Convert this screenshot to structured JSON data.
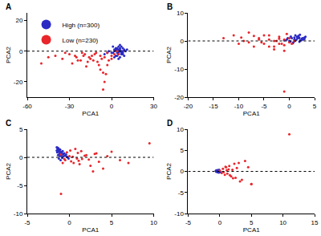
{
  "chart_data": [
    {
      "type": "scatter",
      "title": "A",
      "x_label": "PCA1",
      "y_label": "PCA2",
      "xlim": [
        -60,
        30
      ],
      "ylim": [
        -30,
        25
      ],
      "xticks": [
        -60,
        -30,
        0,
        30
      ],
      "yticks": [
        -20,
        0,
        20
      ],
      "hline": 0,
      "legend": "top left",
      "series": [
        {
          "name": "High (n=300)",
          "color": "#2b2bc4",
          "x": [
            2,
            4,
            5,
            6,
            7,
            8,
            3,
            5,
            9,
            1,
            6,
            4,
            7,
            8,
            2,
            5,
            3,
            10,
            6,
            4,
            0,
            -2,
            7,
            5,
            8,
            3,
            -5,
            6,
            9,
            4,
            11,
            1,
            5,
            7,
            -3,
            2,
            8,
            6,
            4,
            5
          ],
          "y": [
            0,
            1,
            -1,
            2,
            0,
            -2,
            -3,
            3,
            1,
            -1,
            -4,
            0,
            -1,
            2,
            1,
            -2,
            2,
            0,
            1,
            -3,
            -1,
            0,
            3,
            -5,
            -1,
            1,
            -2,
            0,
            -3,
            2,
            1,
            3,
            0,
            -2,
            -1,
            -4,
            0,
            4,
            -1,
            1
          ]
        },
        {
          "name": "Low (n=230)",
          "color": "#e8262b",
          "x": [
            -40,
            -35,
            -30,
            -28,
            -25,
            -22,
            -20,
            -18,
            -15,
            -12,
            -10,
            -8,
            -6,
            -5,
            -4,
            -3,
            -2,
            0,
            2,
            4,
            -50,
            -45,
            -33,
            -26,
            -17,
            -14,
            -9,
            -7,
            -11,
            -19,
            -24,
            -5,
            -3,
            -16,
            -21,
            0,
            5,
            -8,
            -13,
            -6
          ],
          "y": [
            -3,
            -5,
            -2,
            -8,
            -4,
            -6,
            -3,
            -10,
            -5,
            -2,
            -7,
            -12,
            -25,
            -4,
            -15,
            -1,
            -6,
            -3,
            -2,
            0,
            -8,
            -4,
            -1,
            -3,
            -7,
            -3,
            -9,
            -5,
            -1,
            -2,
            -6,
            -20,
            -9,
            -4,
            -1,
            -5,
            -2,
            -3,
            -6,
            -14
          ]
        }
      ]
    },
    {
      "type": "scatter",
      "title": "B",
      "x_label": "PCA1",
      "y_label": "PCA2",
      "xlim": [
        -20,
        5
      ],
      "ylim": [
        -20,
        10
      ],
      "xticks": [
        -20,
        -15,
        -10,
        -5,
        0,
        5
      ],
      "yticks": [
        -20,
        -10,
        0,
        10
      ],
      "hline": 0,
      "series": [
        {
          "name": "High (n=300)",
          "color": "#2b2bc4",
          "x": [
            0.5,
            1,
            1.5,
            2,
            2.5,
            3,
            0,
            1.2,
            2.2,
            0.8,
            1.8,
            2.8,
            -0.5,
            1,
            2,
            3.2,
            0.3,
            1.6,
            2.4,
            -1,
            0.7,
            1.4,
            2.6,
            3,
            0.2,
            1.9,
            -0.3,
            2.1,
            1.1,
            2.9
          ],
          "y": [
            1,
            0.5,
            1.5,
            1,
            0.8,
            1.2,
            0,
            2,
            0.2,
            -0.5,
            1.8,
            0.5,
            0.5,
            1.2,
            -0.3,
            1.5,
            1.6,
            0.9,
            0.3,
            0.2,
            -0.8,
            0.4,
            1,
            0.7,
            -0.2,
            1.3,
            1,
            2.2,
            0,
            0.9
          ]
        },
        {
          "name": "Low (n=230)",
          "color": "#e8262b",
          "x": [
            -13,
            -11,
            -10,
            -9,
            -8,
            -7,
            -6,
            -5,
            -4,
            -3,
            -2,
            -1,
            0,
            1,
            -8,
            -6,
            -5,
            -4,
            -3,
            -2,
            -1,
            0,
            -7,
            -3,
            -1,
            -2,
            -4,
            0.5,
            -0.5,
            -1.5,
            -9.5,
            -5.5,
            -2.5,
            -1
          ],
          "y": [
            1,
            2,
            -1,
            0,
            3,
            -2,
            1,
            -1,
            2,
            0,
            -1,
            0.5,
            -0.5,
            0,
            -0.5,
            0.5,
            2,
            -2,
            -3,
            1.5,
            -1.5,
            1,
            1.8,
            -2,
            -18,
            0.8,
            0.5,
            -1,
            2.5,
            -1,
            1.2,
            -0.5,
            0,
            -3.5
          ]
        }
      ]
    },
    {
      "type": "scatter",
      "title": "C",
      "x_label": "PCA1",
      "y_label": "PCA2",
      "xlim": [
        -5,
        10
      ],
      "ylim": [
        -10,
        5
      ],
      "xticks": [
        -5,
        0,
        5,
        10
      ],
      "yticks": [
        -10,
        -5,
        0,
        5
      ],
      "hline": 0,
      "series": [
        {
          "name": "High (n=300)",
          "color": "#2b2bc4",
          "x": [
            -1.5,
            -1.4,
            -1.3,
            -1.2,
            -1.1,
            -1,
            -0.9,
            -0.8,
            -0.7,
            -0.6,
            -0.5,
            -0.4,
            -0.3,
            -1.45,
            -1.35,
            -1.25,
            -1.15,
            -1.05,
            -0.95,
            -0.85,
            -1.4,
            -1.3,
            -1.2,
            -0.2,
            -0.1,
            -1.5,
            -1.1,
            -0.9,
            -0.7,
            -1.3
          ],
          "y": [
            1.8,
            1.5,
            1.6,
            1.2,
            1.4,
            1,
            0.8,
            1.1,
            0.6,
            0.7,
            0.3,
            0.5,
            0.1,
            0.9,
            0.4,
            -0.2,
            0.2,
            -0.5,
            0.3,
            -0.1,
            1.7,
            1.3,
            0.6,
            0,
            -0.2,
            1.2,
            0.9,
            0.5,
            0.2,
            1
          ]
        },
        {
          "name": "Low (n=230)",
          "color": "#e8262b",
          "x": [
            -1,
            -0.5,
            0,
            0.5,
            1,
            1.5,
            2,
            2.5,
            3,
            3.5,
            4,
            5,
            6,
            -0.8,
            -0.3,
            0.2,
            0.7,
            1.2,
            1.8,
            2.3,
            -1,
            0.4,
            0.9,
            1.4,
            4.5,
            7,
            9.5,
            -0.6,
            0.1,
            2.8,
            3.2,
            1.1
          ],
          "y": [
            0.5,
            -0.5,
            0.2,
            -1,
            0.8,
            -0.3,
            0.4,
            -1.5,
            0.6,
            -0.8,
            -2,
            1,
            -0.5,
            -1,
            0.9,
            -0.7,
            1.5,
            -1.2,
            0.3,
            -0.4,
            -6.5,
            0.1,
            -0.2,
            1.1,
            0.2,
            -1,
            2.5,
            -0.3,
            1.2,
            -2.5,
            0.7,
            -0.6
          ]
        }
      ]
    },
    {
      "type": "scatter",
      "title": "D",
      "x_label": "PCA1",
      "y_label": "PCA2",
      "xlim": [
        -5,
        15
      ],
      "ylim": [
        -10,
        10
      ],
      "xticks": [
        -5,
        0,
        5,
        10,
        15
      ],
      "yticks": [
        -10,
        -5,
        0,
        5,
        10
      ],
      "hline": 0,
      "series": [
        {
          "name": "High (n=300)",
          "color": "#2b2bc4",
          "x": [
            -0.6,
            -0.5,
            -0.4,
            -0.3,
            -0.2,
            -0.1,
            0,
            -0.55,
            -0.45,
            -0.35,
            -0.25,
            -0.15,
            -0.5,
            -0.4,
            -0.3,
            -0.2,
            -0.6,
            -0.35,
            -0.1,
            0.1
          ],
          "y": [
            0.1,
            0.2,
            0,
            0.3,
            -0.1,
            0.2,
            0,
            -0.1,
            0.3,
            -0.2,
            0.1,
            -0.3,
            0,
            0.1,
            0.2,
            0,
            0.2,
            -0.1,
            0.4,
            -0.2
          ]
        },
        {
          "name": "Low (n=230)",
          "color": "#e8262b",
          "x": [
            0,
            0.3,
            0.5,
            0.8,
            1,
            1.2,
            1.5,
            1.8,
            2,
            2.3,
            2.5,
            3,
            3.5,
            4,
            4.5,
            5,
            0.6,
            1.1,
            1.6,
            2.1,
            2.7,
            3.2,
            0.9,
            1.4,
            11,
            5
          ],
          "y": [
            0.2,
            -0.4,
            0.6,
            -0.8,
            1,
            -0.5,
            1.3,
            -1.2,
            0.4,
            1.8,
            -1.5,
            2,
            -2,
            2.5,
            1,
            -3,
            -0.2,
            0.3,
            -0.9,
            -1.6,
            0.8,
            -2.4,
            1.1,
            0.5,
            8.8,
            -3
          ]
        }
      ]
    }
  ]
}
